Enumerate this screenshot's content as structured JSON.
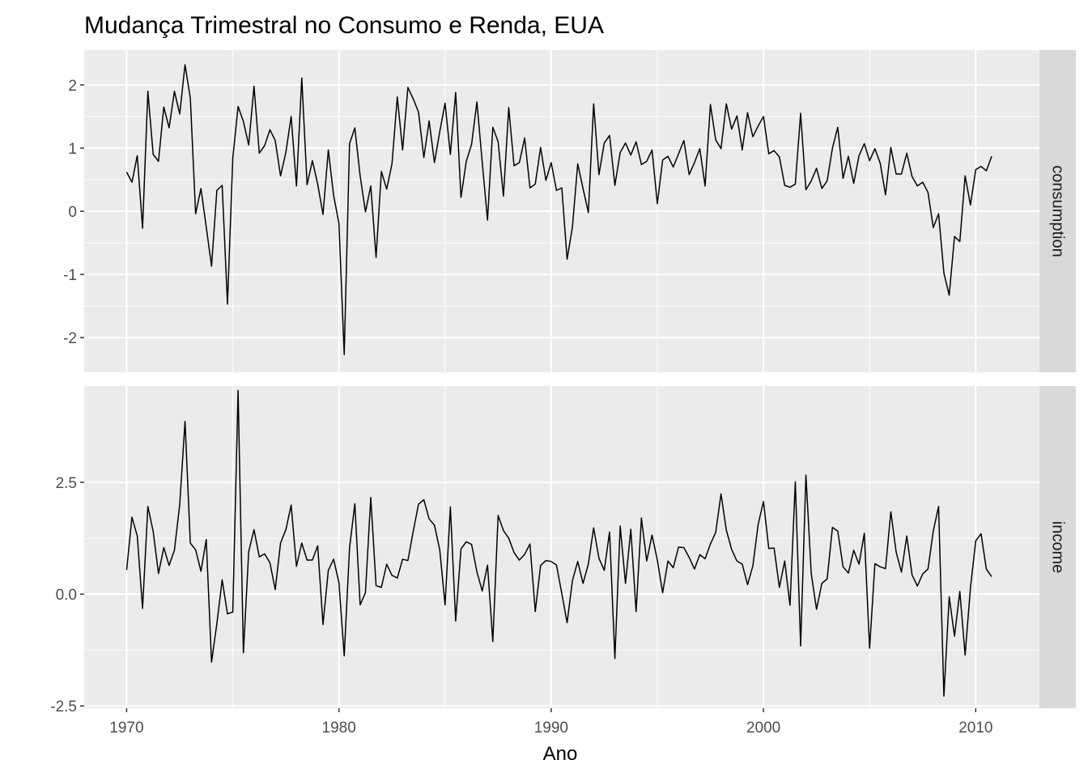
{
  "chart_data": {
    "type": "line",
    "title": "Mudança Trimestral no Consumo e Renda, EUA",
    "xlabel": "Ano",
    "ylabel": "",
    "x_start": 1970,
    "x_step": 0.25,
    "xlim": [
      1968,
      2013
    ],
    "x_ticks": [
      1970,
      1980,
      1990,
      2000,
      2010
    ],
    "x_tick_labels": [
      "1970",
      "1980",
      "1990",
      "2000",
      "2010"
    ],
    "grid": true,
    "panel_background": "#ebebeb",
    "strip_background": "#d9d9d9",
    "line_color": "#000000",
    "facets": [
      {
        "name": "consumption",
        "ylim": [
          -2.55,
          2.55
        ],
        "y_ticks": [
          -2,
          -1,
          0,
          1,
          2
        ],
        "y_tick_labels": [
          "-2",
          "-1",
          "0",
          "1",
          "2"
        ],
        "values": [
          0.62,
          0.46,
          0.88,
          -0.27,
          1.9,
          0.9,
          0.79,
          1.65,
          1.32,
          1.9,
          1.54,
          2.32,
          1.79,
          -0.04,
          0.36,
          -0.25,
          -0.87,
          0.33,
          0.41,
          -1.47,
          0.84,
          1.66,
          1.42,
          1.05,
          1.98,
          0.92,
          1.04,
          1.29,
          1.12,
          0.56,
          0.93,
          1.5,
          0.4,
          2.11,
          0.42,
          0.8,
          0.43,
          -0.05,
          0.97,
          0.25,
          -0.19,
          -2.27,
          1.07,
          1.32,
          0.56,
          -0.01,
          0.4,
          -0.73,
          0.63,
          0.35,
          0.75,
          1.81,
          0.97,
          1.96,
          1.78,
          1.57,
          0.85,
          1.43,
          0.77,
          1.26,
          1.71,
          0.9,
          1.88,
          0.22,
          0.79,
          1.06,
          1.73,
          0.78,
          -0.14,
          1.33,
          1.1,
          0.24,
          1.64,
          0.72,
          0.77,
          1.16,
          0.37,
          0.43,
          1.01,
          0.49,
          0.77,
          0.33,
          0.37,
          -0.76,
          -0.25,
          0.75,
          0.36,
          -0.02,
          1.7,
          0.58,
          1.08,
          1.2,
          0.41,
          0.93,
          1.08,
          0.89,
          1.1,
          0.74,
          0.79,
          0.97,
          0.12,
          0.81,
          0.87,
          0.7,
          0.91,
          1.12,
          0.58,
          0.77,
          0.99,
          0.4,
          1.69,
          1.13,
          0.99,
          1.7,
          1.3,
          1.51,
          0.97,
          1.56,
          1.18,
          1.35,
          1.5,
          0.91,
          0.96,
          0.86,
          0.41,
          0.38,
          0.43,
          1.55,
          0.34,
          0.48,
          0.68,
          0.36,
          0.48,
          1.0,
          1.33,
          0.52,
          0.87,
          0.44,
          0.88,
          1.07,
          0.8,
          0.99,
          0.76,
          0.26,
          1.01,
          0.59,
          0.59,
          0.92,
          0.55,
          0.4,
          0.46,
          0.3,
          -0.26,
          -0.04,
          -0.98,
          -1.33,
          -0.4,
          -0.48,
          0.56,
          0.1,
          0.66,
          0.71,
          0.64,
          0.87
        ]
      },
      {
        "name": "income",
        "ylim": [
          -2.55,
          4.65
        ],
        "y_ticks": [
          -2.5,
          0.0,
          2.5
        ],
        "y_tick_labels": [
          "-2.5",
          "0.0",
          "2.5"
        ],
        "values": [
          0.54,
          1.72,
          1.3,
          -0.32,
          1.96,
          1.4,
          0.46,
          1.04,
          0.64,
          0.98,
          2.0,
          3.86,
          1.14,
          0.99,
          0.51,
          1.22,
          -1.52,
          -0.66,
          0.32,
          -0.44,
          -0.4,
          4.55,
          -1.31,
          0.95,
          1.44,
          0.83,
          0.9,
          0.7,
          0.1,
          1.14,
          1.44,
          1.99,
          0.62,
          1.14,
          0.76,
          0.76,
          1.08,
          -0.68,
          0.53,
          0.78,
          0.26,
          -1.38,
          1.03,
          2.02,
          -0.24,
          0.03,
          2.16,
          0.19,
          0.15,
          0.67,
          0.42,
          0.36,
          0.78,
          0.75,
          1.4,
          2.01,
          2.11,
          1.68,
          1.54,
          0.99,
          -0.24,
          1.95,
          -0.6,
          1.01,
          1.17,
          1.11,
          0.5,
          0.07,
          0.65,
          -1.06,
          1.76,
          1.42,
          1.25,
          0.93,
          0.76,
          0.89,
          1.12,
          -0.39,
          0.64,
          0.75,
          0.73,
          0.65,
          0.01,
          -0.64,
          0.3,
          0.73,
          0.24,
          0.67,
          1.48,
          0.8,
          0.53,
          1.39,
          -1.44,
          1.52,
          0.24,
          1.45,
          -0.39,
          1.7,
          0.74,
          1.32,
          0.76,
          0.03,
          0.74,
          0.59,
          1.05,
          1.04,
          0.82,
          0.56,
          0.88,
          0.79,
          1.12,
          1.38,
          2.24,
          1.43,
          1.0,
          0.74,
          0.67,
          0.21,
          0.63,
          1.56,
          2.07,
          1.02,
          1.03,
          0.15,
          0.74,
          -0.25,
          2.51,
          -1.16,
          2.66,
          0.46,
          -0.34,
          0.24,
          0.34,
          1.49,
          1.41,
          0.61,
          0.47,
          0.98,
          0.67,
          1.36,
          -1.21,
          0.68,
          0.61,
          0.57,
          1.84,
          0.94,
          0.49,
          1.3,
          0.43,
          0.18,
          0.45,
          0.56,
          1.41,
          1.96,
          -2.28,
          -0.06,
          -0.94,
          0.06,
          -1.36,
          0.14,
          1.19,
          1.35,
          0.56,
          0.39
        ]
      }
    ]
  }
}
